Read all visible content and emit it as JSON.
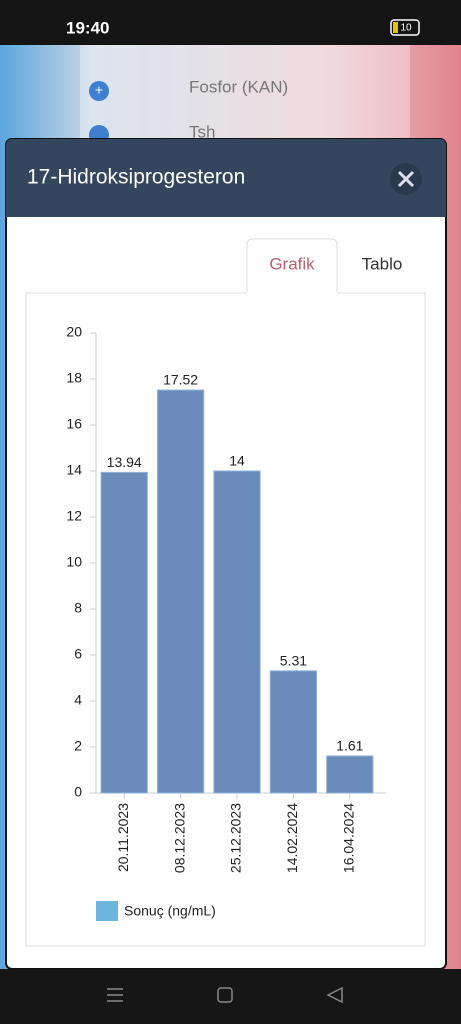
{
  "status_bar": {
    "time": "19:40",
    "battery": "10"
  },
  "background_list": [
    "Fosfor (KAN)",
    "Tsh"
  ],
  "modal": {
    "title": "17-Hidroksiprogesteron",
    "tabs": [
      "Grafik",
      "Tablo"
    ]
  },
  "chart_data": {
    "type": "bar",
    "categories": [
      "20.11.2023",
      "08.12.2023",
      "25.12.2023",
      "14.02.2024",
      "16.04.2024"
    ],
    "series": [
      {
        "name": "Sonuç (ng/mL)",
        "color": "#6b8bbb",
        "values": [
          13.94,
          17.52,
          14,
          5.31,
          1.61
        ]
      }
    ],
    "legend_color": "#6cb5dd",
    "ylim": [
      0,
      20
    ],
    "yticks": [
      0,
      2,
      4,
      6,
      8,
      10,
      12,
      14,
      16,
      18,
      20
    ],
    "grid": false
  }
}
